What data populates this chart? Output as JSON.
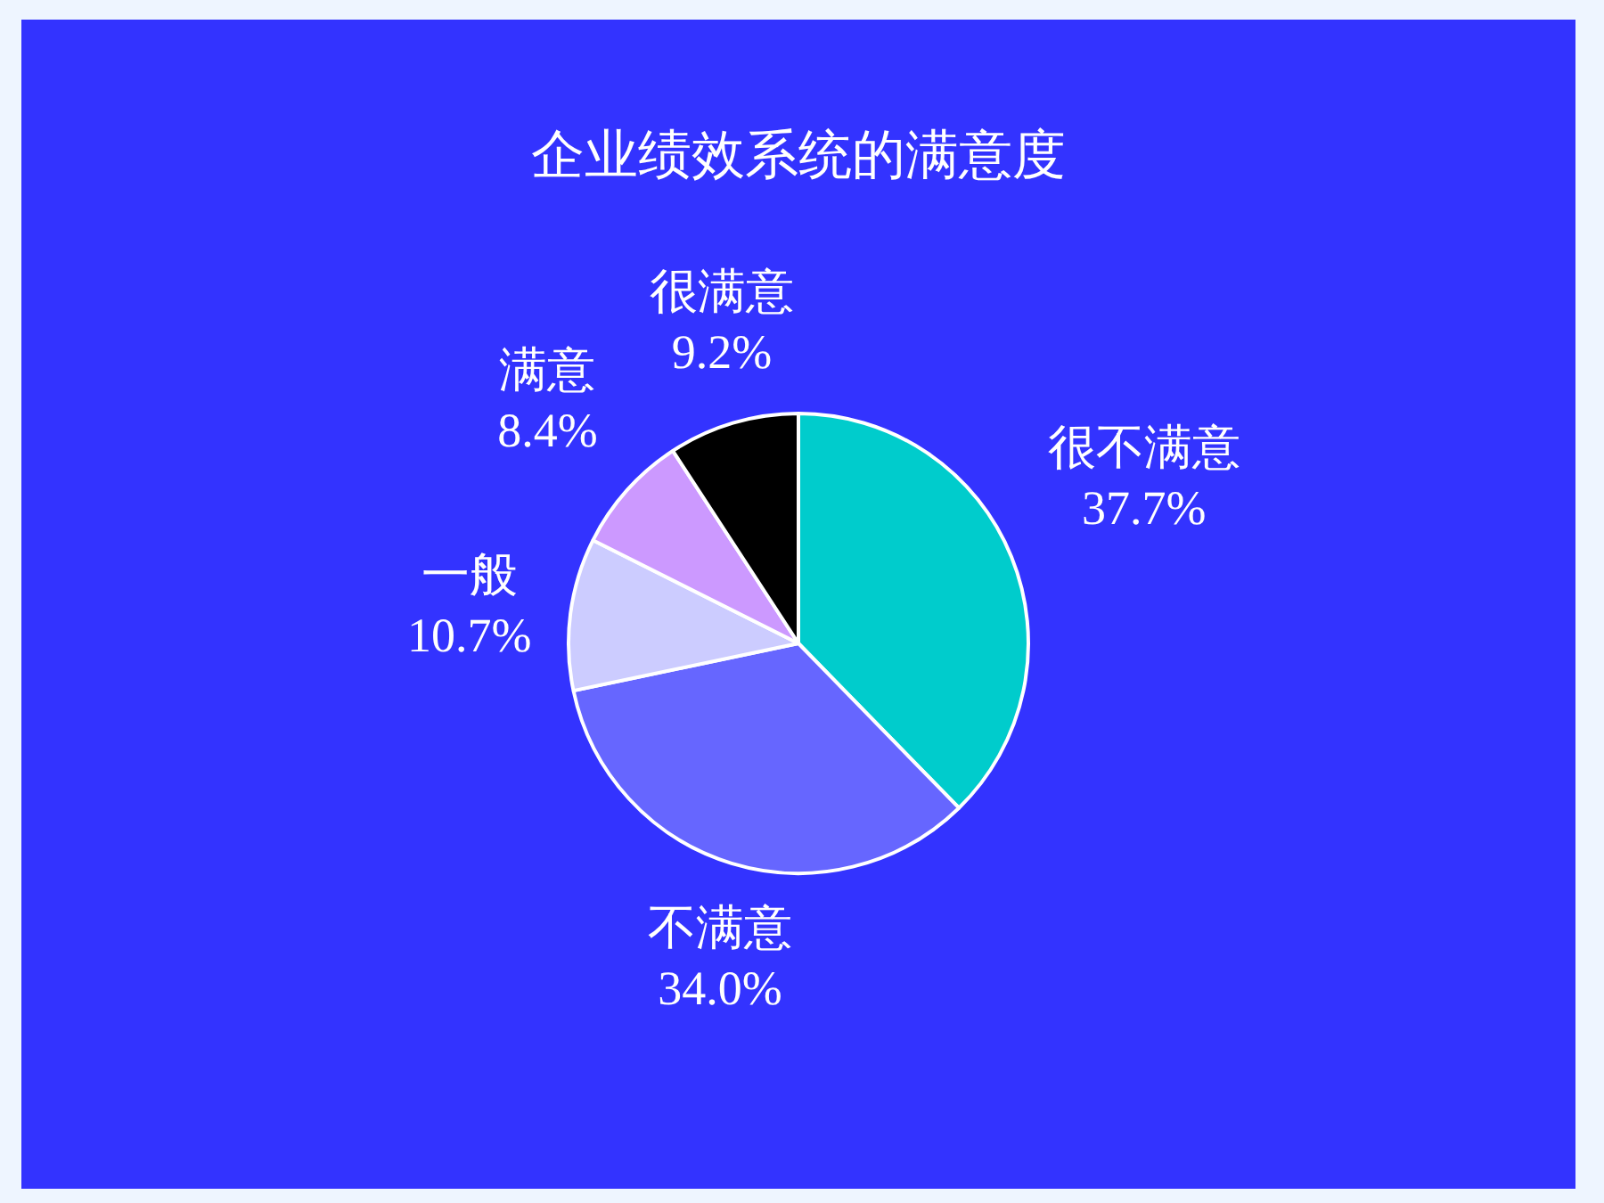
{
  "chart_data": {
    "type": "pie",
    "title": "企业绩效系统的满意度",
    "categories": [
      "很不满意",
      "不满意",
      "一般",
      "满意",
      "很满意"
    ],
    "values": [
      37.7,
      34.0,
      10.7,
      8.4,
      9.2
    ],
    "colors": [
      "#00cccc",
      "#6666ff",
      "#ccccff",
      "#cc99ff",
      "#000000"
    ],
    "value_labels": [
      "37.7%",
      "34.0%",
      "10.7%",
      "8.4%",
      "9.2%"
    ]
  }
}
